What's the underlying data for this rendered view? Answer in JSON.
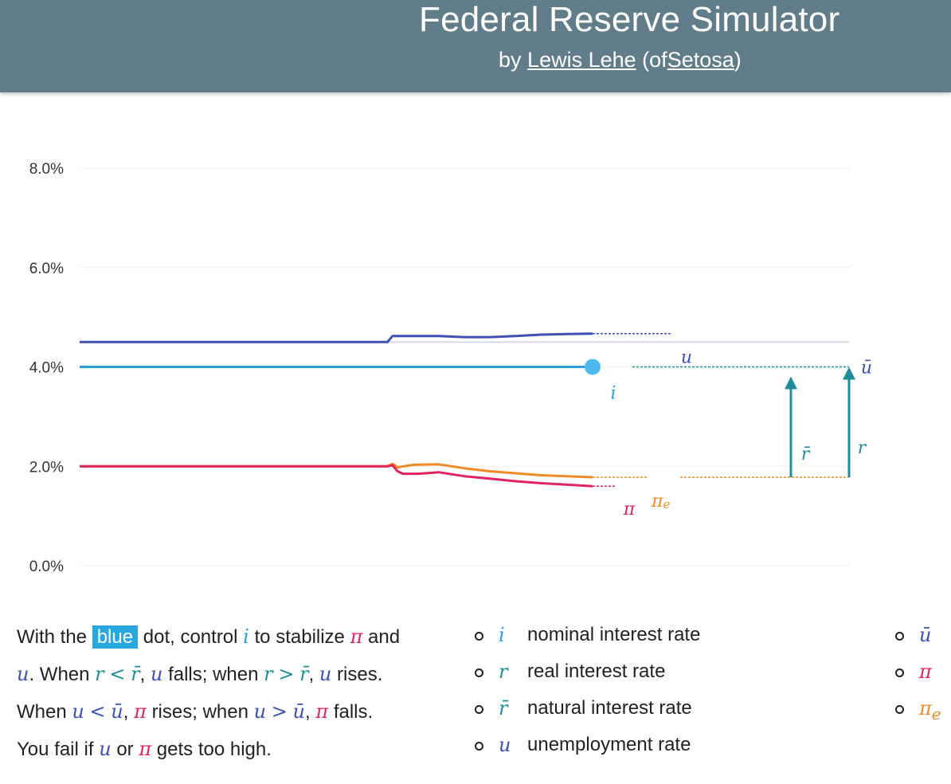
{
  "header": {
    "title": "Federal Reserve Simulator",
    "by": "by",
    "author": "Lewis Lehe",
    "of_open": "(of",
    "org": "Setosa",
    "close": ")"
  },
  "chart_data": {
    "type": "line",
    "ylim": [
      0,
      8
    ],
    "yticks": [
      0,
      2,
      4,
      6,
      8
    ],
    "yticklabels": [
      "0.0%",
      "2.0%",
      "4.0%",
      "6.0%",
      "8.0%"
    ],
    "grid": true,
    "x_range": [
      0,
      100
    ],
    "series": [
      {
        "name": "u",
        "color": "#3f51b5",
        "x": [
          0,
          60,
          61,
          70,
          75,
          80,
          85,
          90,
          95,
          100
        ],
        "y": [
          4.5,
          4.5,
          4.62,
          4.62,
          4.6,
          4.6,
          4.62,
          4.65,
          4.66,
          4.67
        ]
      },
      {
        "name": "i",
        "color": "#2a9fe0",
        "x": [
          0,
          100
        ],
        "y": [
          4.0,
          4.0
        ]
      },
      {
        "name": "π_e",
        "color": "#f08a24",
        "x": [
          0,
          60,
          61,
          62,
          65,
          70,
          75,
          80,
          85,
          90,
          95,
          100
        ],
        "y": [
          2.0,
          2.0,
          2.05,
          1.98,
          2.03,
          2.04,
          1.96,
          1.9,
          1.86,
          1.82,
          1.8,
          1.78
        ]
      },
      {
        "name": "π",
        "color": "#e0245e",
        "x": [
          0,
          60,
          61,
          62,
          63,
          66,
          70,
          75,
          80,
          85,
          90,
          95,
          100
        ],
        "y": [
          2.0,
          2.0,
          2.02,
          1.9,
          1.85,
          1.85,
          1.88,
          1.8,
          1.75,
          1.7,
          1.66,
          1.63,
          1.6
        ]
      }
    ],
    "natural_u": 4.5,
    "i_dot_value": 4.0,
    "r_bar_value": 1.78,
    "r_value": 1.78,
    "colors": {
      "u": "#3f51b5",
      "i": "#2a9fe0",
      "pi": "#e0245e",
      "pi_e": "#f08a24",
      "r": "#1e8f98",
      "u_bar_line": "#d6d8ea",
      "grid": "#e4e4e4"
    },
    "labels": {
      "u": "u",
      "u_bar": "ū",
      "i": "i",
      "pi": "π",
      "pi_e": "π",
      "pi_e_sub": "e",
      "r_bar": "r̄",
      "r": "r"
    }
  },
  "description": {
    "line1_a": "With the",
    "line1_hl": "blue",
    "line1_b": "dot, control",
    "line1_i": "i",
    "line1_c": "to stabilize",
    "line1_pi": "π",
    "line1_d": "and",
    "line2_u": "u",
    "line2_a": ". When",
    "line2_r1": "r",
    "line2_lt": "<",
    "line2_rbar1": "r̄",
    "line2_comma1": ",",
    "line2_u2": "u",
    "line2_b": "falls; when",
    "line2_r2": "r",
    "line2_gt": ">",
    "line2_rbar2": "r̄",
    "line2_comma2": ",",
    "line2_u3": "u",
    "line2_c": "rises.",
    "line3_a": "When",
    "line3_u1": "u",
    "line3_lt": "<",
    "line3_ubar1": "ū",
    "line3_comma1": ",",
    "line3_pi1": "π",
    "line3_b": "rises; when",
    "line3_u2": "u",
    "line3_gt": ">",
    "line3_ubar2": "ū",
    "line3_comma2": ",",
    "line3_pi2": "π",
    "line3_c": "falls.",
    "line4_a": "You fail if",
    "line4_u": "u",
    "line4_b": "or",
    "line4_pi": "π",
    "line4_c": "gets too high."
  },
  "legend1": [
    {
      "sym": "i",
      "label": "nominal interest rate",
      "color": "#2a9fe0"
    },
    {
      "sym": "r",
      "label": "real interest rate",
      "color": "#1e8f98"
    },
    {
      "sym": "r̄",
      "label": "natural interest rate",
      "color": "#1e8f98"
    },
    {
      "sym": "u",
      "label": "unemployment rate",
      "color": "#3f51b5"
    }
  ],
  "legend2": [
    {
      "sym": "ū",
      "color": "#3f51b5"
    },
    {
      "sym": "π",
      "color": "#e0245e"
    },
    {
      "sym": "π",
      "sub": "e",
      "color": "#f08a24"
    }
  ]
}
